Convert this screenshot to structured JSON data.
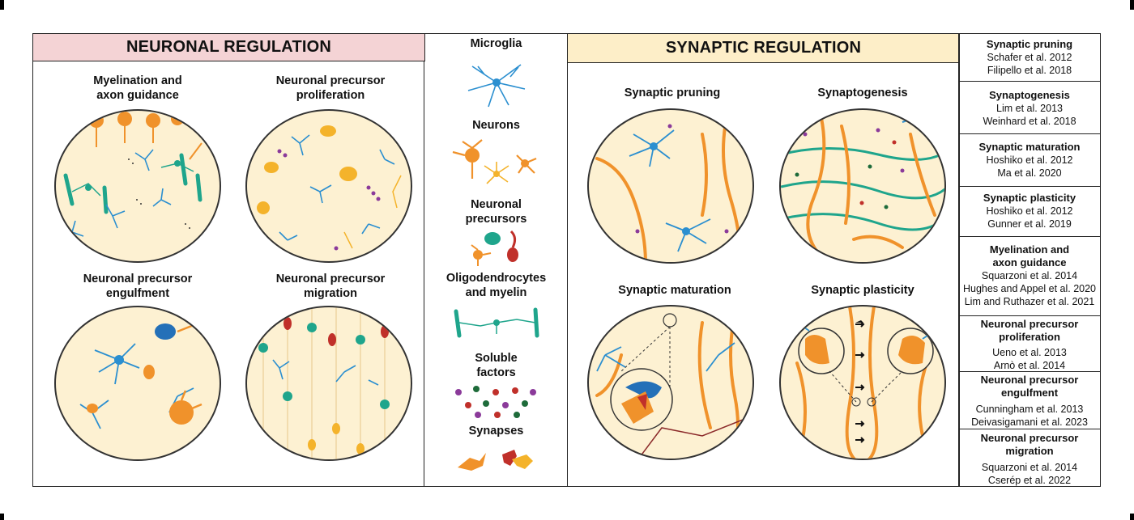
{
  "neuronal": {
    "header": "NEURONAL REGULATION",
    "panels": [
      {
        "title_line1": "Myelination and",
        "title_line2": "axon guidance"
      },
      {
        "title_line1": "Neuronal precursor",
        "title_line2": "proliferation"
      },
      {
        "title_line1": "Neuronal precursor",
        "title_line2": "engulfment"
      },
      {
        "title_line1": "Neuronal precursor",
        "title_line2": "migration"
      }
    ]
  },
  "legend": [
    {
      "line1": "Microglia",
      "line2": ""
    },
    {
      "line1": "Neurons",
      "line2": ""
    },
    {
      "line1": "Neuronal",
      "line2": "precursors"
    },
    {
      "line1": "Oligodendrocytes",
      "line2": "and myelin"
    },
    {
      "line1": "Soluble",
      "line2": "factors"
    },
    {
      "line1": "Synapses",
      "line2": ""
    }
  ],
  "synaptic": {
    "header": "SYNAPTIC REGULATION",
    "panels": [
      {
        "title": "Synaptic pruning"
      },
      {
        "title": "Synaptogenesis"
      },
      {
        "title": "Synaptic maturation"
      },
      {
        "title": "Synaptic plasticity"
      }
    ]
  },
  "references": [
    {
      "title1": "Synaptic pruning",
      "title2": "",
      "refs": [
        "Schafer et al. 2012",
        "Filipello et al. 2018"
      ]
    },
    {
      "title1": "Synaptogenesis",
      "title2": "",
      "refs": [
        "Lim et al. 2013",
        "Weinhard et al. 2018"
      ]
    },
    {
      "title1": "Synaptic maturation",
      "title2": "",
      "refs": [
        "Hoshiko et al. 2012",
        "Ma et al. 2020"
      ]
    },
    {
      "title1": "Synaptic plasticity",
      "title2": "",
      "refs": [
        "Hoshiko et al. 2012",
        "Gunner et al. 2019"
      ]
    },
    {
      "title1": "Myelination and",
      "title2": "axon guidance",
      "refs": [
        "Squarzoni et al. 2014",
        "Hughes and Appel et al. 2020",
        "Lim and Ruthazer et al. 2021"
      ]
    },
    {
      "title1": "Neuronal precursor",
      "title2": "proliferation",
      "refs": [
        "Ueno et al. 2013",
        "Arnò et al. 2014"
      ]
    },
    {
      "title1": "Neuronal precursor",
      "title2": "engulfment",
      "refs": [
        "Cunningham et al. 2013",
        "Deivasigamani et al. 2023"
      ]
    },
    {
      "title1": "Neuronal precursor",
      "title2": "migration",
      "refs": [
        "Squarzoni et al. 2014",
        "Cserép et al. 2022"
      ]
    }
  ],
  "colors": {
    "neuronal_header_bg": "#f4d3d5",
    "synaptic_header_bg": "#fdeec8",
    "circle_bg": "#fdf1d2",
    "microglia": "#2b8fd0",
    "neuron": "#f0922b",
    "oligodendrocyte": "#1fa58c",
    "precursor_red": "#c0302a"
  }
}
